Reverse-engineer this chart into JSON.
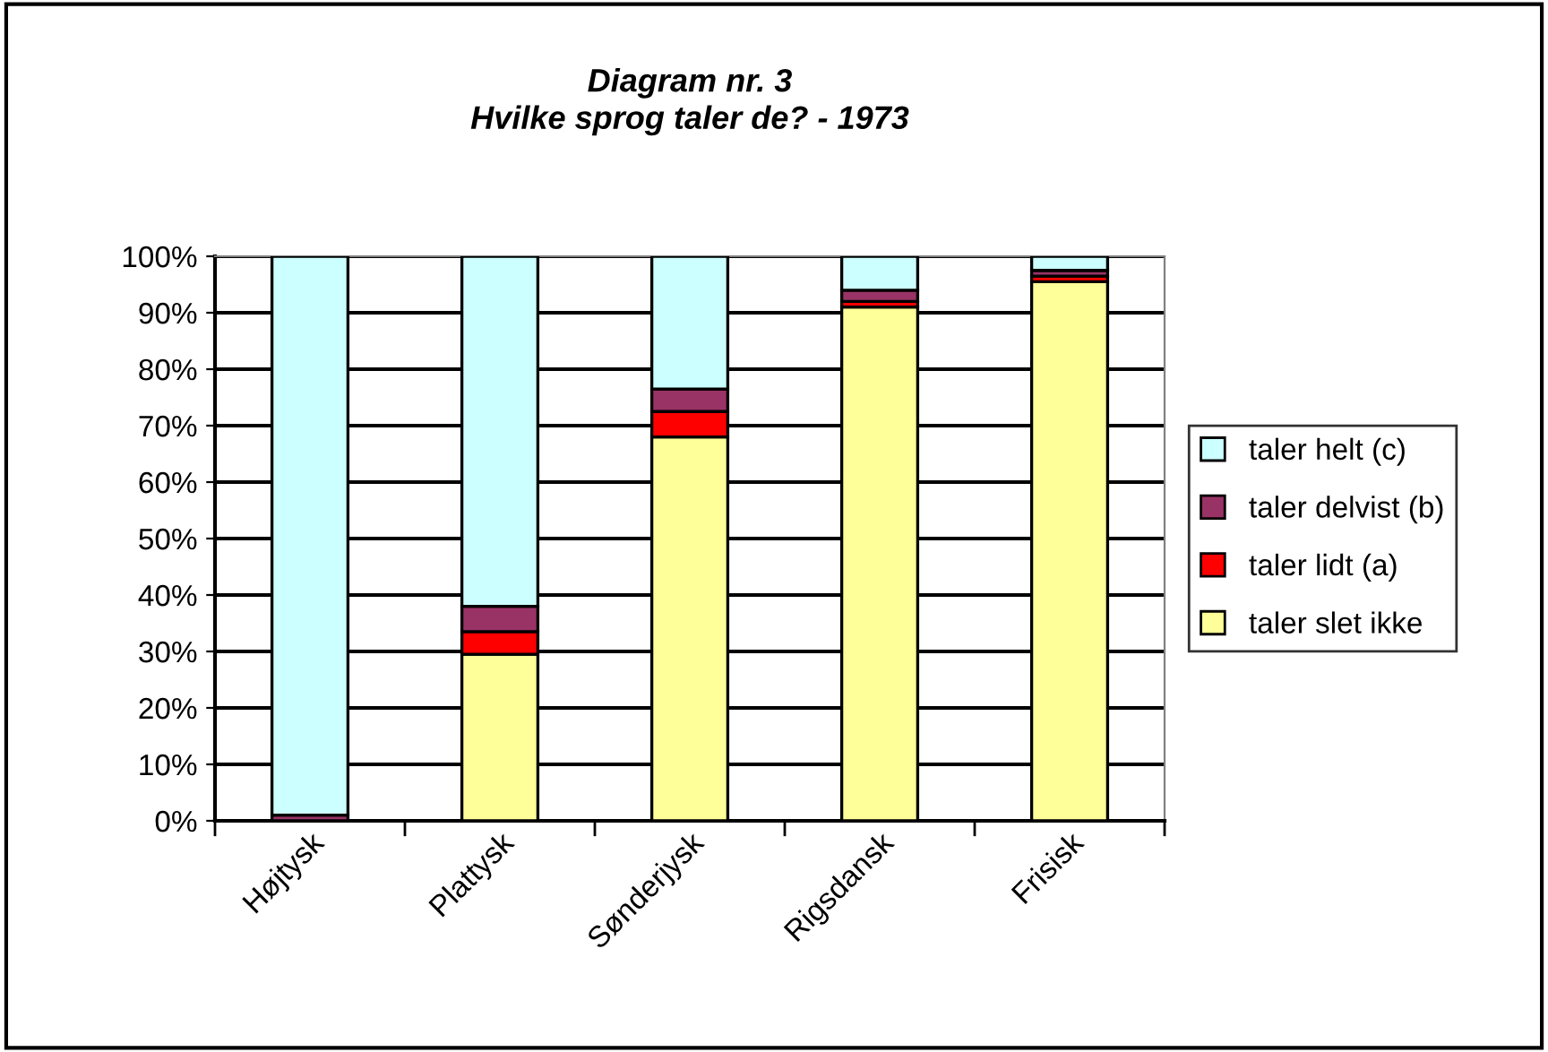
{
  "chart_data": {
    "type": "bar",
    "title": "Diagram nr. 3\nHvilke sprog taler de? - 1973",
    "stacked": true,
    "categories": [
      "Højtysk",
      "Plattysk",
      "Sønderjysk",
      "Rigsdansk",
      "Frisisk"
    ],
    "series": [
      {
        "name": "taler slet ikke",
        "color": "#ffff99",
        "values": [
          0,
          29.5,
          68,
          91,
          95.5
        ]
      },
      {
        "name": "taler lidt (a)",
        "color": "#ff0000",
        "values": [
          null,
          4,
          4.5,
          1,
          1
        ]
      },
      {
        "name": "taler delvist (b)",
        "color": "#993366",
        "values": [
          1,
          4.5,
          4,
          2,
          1
        ]
      },
      {
        "name": "taler helt (c)",
        "color": "#ccffff",
        "values": [
          99,
          62,
          23.5,
          6,
          2.5
        ]
      }
    ],
    "ylim": [
      0,
      100
    ],
    "yticks": [
      {
        "value": 0,
        "label": "0%"
      },
      {
        "value": 10,
        "label": "10%"
      },
      {
        "value": 20,
        "label": "20%"
      },
      {
        "value": 30,
        "label": "30%"
      },
      {
        "value": 40,
        "label": "40%"
      },
      {
        "value": 50,
        "label": "50%"
      },
      {
        "value": 60,
        "label": "60%"
      },
      {
        "value": 70,
        "label": "70%"
      },
      {
        "value": 80,
        "label": "80%"
      },
      {
        "value": 90,
        "label": "90%"
      },
      {
        "value": 100,
        "label": "100%"
      }
    ],
    "grid": "y",
    "legend": "right"
  }
}
